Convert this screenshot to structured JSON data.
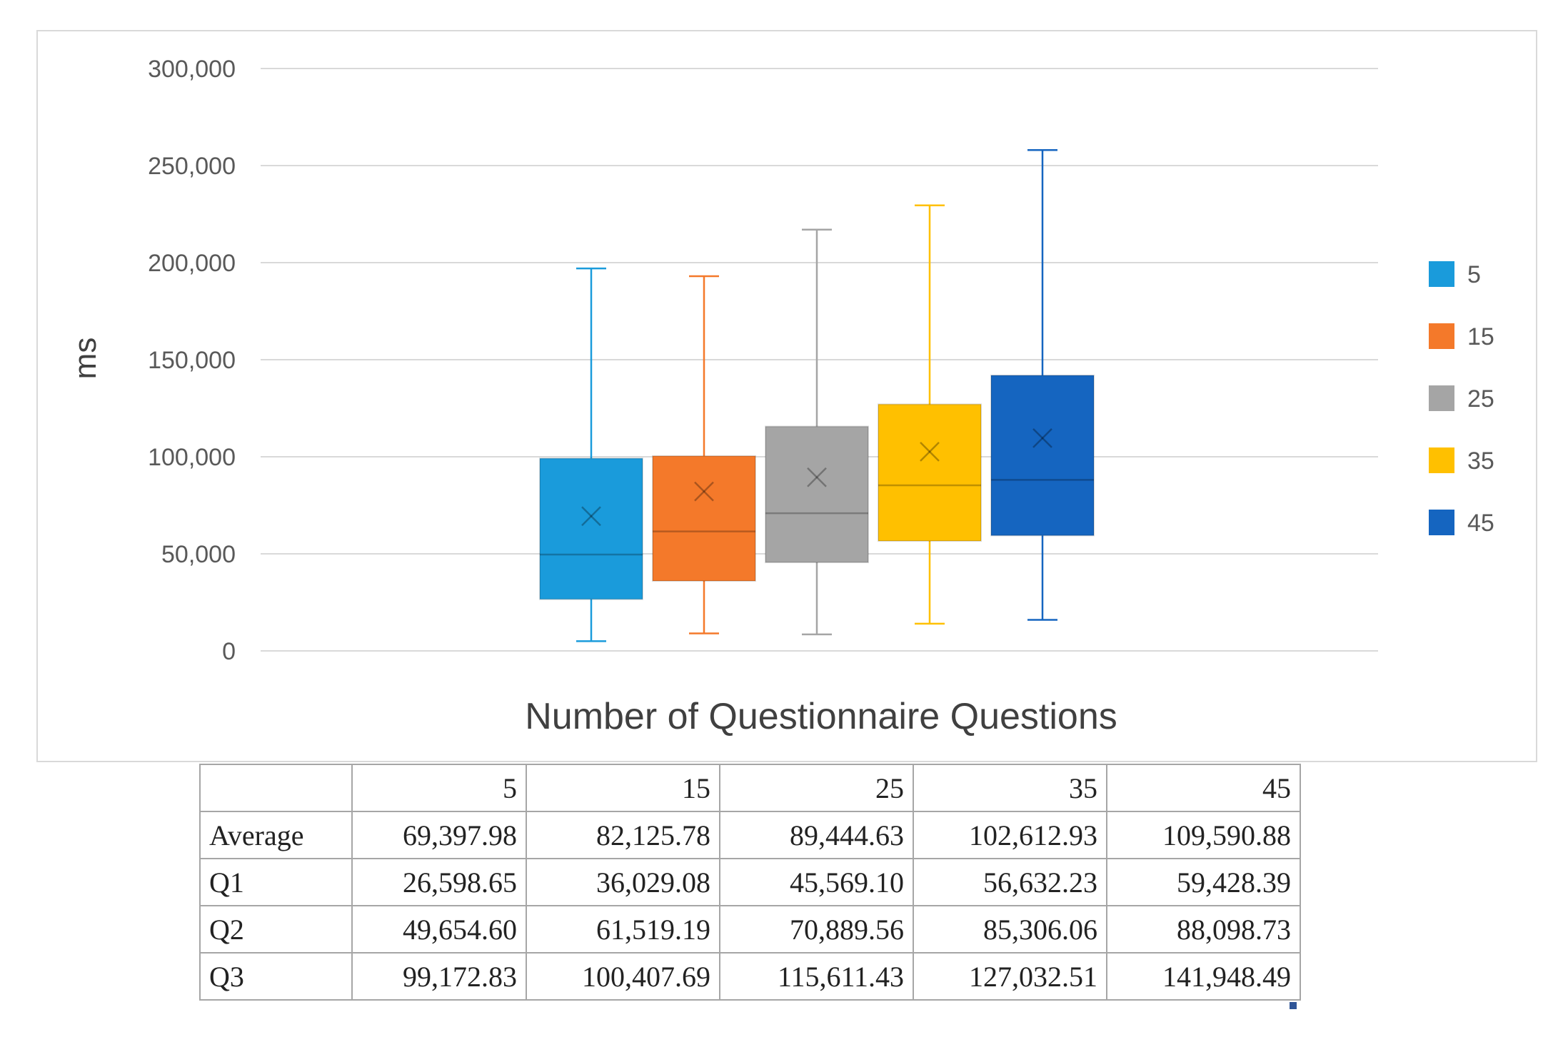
{
  "chart_data": {
    "type": "box",
    "title": "",
    "xlabel": "Number of Questionnaire Questions",
    "ylabel": "ms",
    "ylim": [
      0,
      300000
    ],
    "yticks": [
      0,
      50000,
      100000,
      150000,
      200000,
      250000,
      300000
    ],
    "ytick_labels": [
      "0",
      "50,000",
      "100,000",
      "150,000",
      "200,000",
      "250,000",
      "300,000"
    ],
    "grid": true,
    "legend_position": "right",
    "series": [
      {
        "name": "5",
        "color": "#1a9bdb",
        "min": 5000,
        "q1": 26598.65,
        "median": 49654.6,
        "q3": 99172.83,
        "max": 197000,
        "mean": 69397.98
      },
      {
        "name": "15",
        "color": "#f4792a",
        "min": 9000,
        "q1": 36029.08,
        "median": 61519.19,
        "q3": 100407.69,
        "max": 193000,
        "mean": 82125.78
      },
      {
        "name": "25",
        "color": "#a5a5a5",
        "min": 8500,
        "q1": 45569.1,
        "median": 70889.56,
        "q3": 115611.43,
        "max": 217000,
        "mean": 89444.63
      },
      {
        "name": "35",
        "color": "#ffc000",
        "min": 14000,
        "q1": 56632.23,
        "median": 85306.06,
        "q3": 127032.51,
        "max": 229500,
        "mean": 102612.93
      },
      {
        "name": "45",
        "color": "#1565c0",
        "min": 16000,
        "q1": 59428.39,
        "median": 88098.73,
        "q3": 141948.49,
        "max": 258000,
        "mean": 109590.88
      }
    ]
  },
  "table": {
    "header": [
      "",
      "5",
      "15",
      "25",
      "35",
      "45"
    ],
    "rows": [
      [
        "Average",
        "69,397.98",
        "82,125.78",
        "89,444.63",
        "102,612.93",
        "109,590.88"
      ],
      [
        "Q1",
        "26,598.65",
        "36,029.08",
        "45,569.10",
        "56,632.23",
        "59,428.39"
      ],
      [
        "Q2",
        "49,654.60",
        "61,519.19",
        "70,889.56",
        "85,306.06",
        "88,098.73"
      ],
      [
        "Q3",
        "99,172.83",
        "100,407.69",
        "115,611.43",
        "127,032.51",
        "141,948.49"
      ]
    ]
  }
}
